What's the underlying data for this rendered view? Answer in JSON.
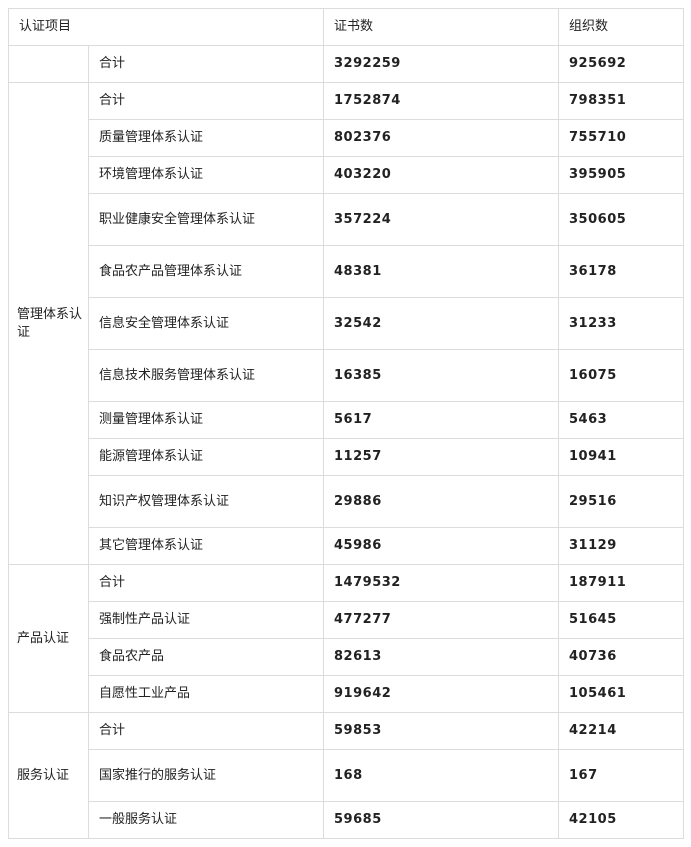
{
  "header": {
    "item": "认证项目",
    "certificates": "证书数",
    "organizations": "组织数"
  },
  "total": {
    "label": "合计",
    "certificates": "3292259",
    "organizations": "925692"
  },
  "groups": [
    {
      "name": "管理体系认证",
      "rows": [
        {
          "label": "合计",
          "certificates": "1752874",
          "organizations": "798351",
          "tall": false
        },
        {
          "label": "质量管理体系认证",
          "certificates": "802376",
          "organizations": "755710",
          "tall": false
        },
        {
          "label": "环境管理体系认证",
          "certificates": "403220",
          "organizations": "395905",
          "tall": false
        },
        {
          "label": "职业健康安全管理体系认证",
          "certificates": "357224",
          "organizations": "350605",
          "tall": true
        },
        {
          "label": "食品农产品管理体系认证",
          "certificates": "48381",
          "organizations": "36178",
          "tall": true
        },
        {
          "label": "信息安全管理体系认证",
          "certificates": "32542",
          "organizations": "31233",
          "tall": true
        },
        {
          "label": "信息技术服务管理体系认证",
          "certificates": "16385",
          "organizations": "16075",
          "tall": true
        },
        {
          "label": "测量管理体系认证",
          "certificates": "5617",
          "organizations": "5463",
          "tall": false
        },
        {
          "label": "能源管理体系认证",
          "certificates": "11257",
          "organizations": "10941",
          "tall": false
        },
        {
          "label": "知识产权管理体系认证",
          "certificates": "29886",
          "organizations": "29516",
          "tall": true
        },
        {
          "label": "其它管理体系认证",
          "certificates": "45986",
          "organizations": "31129",
          "tall": false
        }
      ]
    },
    {
      "name": "产品认证",
      "rows": [
        {
          "label": "合计",
          "certificates": "1479532",
          "organizations": "187911",
          "tall": false
        },
        {
          "label": "强制性产品认证",
          "certificates": "477277",
          "organizations": "51645",
          "tall": false
        },
        {
          "label": "食品农产品",
          "certificates": "82613",
          "organizations": "40736",
          "tall": false
        },
        {
          "label": "自愿性工业产品",
          "certificates": "919642",
          "organizations": "105461",
          "tall": false
        }
      ]
    },
    {
      "name": "服务认证",
      "rows": [
        {
          "label": "合计",
          "certificates": "59853",
          "organizations": "42214",
          "tall": false
        },
        {
          "label": "国家推行的服务认证",
          "certificates": "168",
          "organizations": "167",
          "tall": true
        },
        {
          "label": "一般服务认证",
          "certificates": "59685",
          "organizations": "42105",
          "tall": false
        }
      ]
    }
  ]
}
